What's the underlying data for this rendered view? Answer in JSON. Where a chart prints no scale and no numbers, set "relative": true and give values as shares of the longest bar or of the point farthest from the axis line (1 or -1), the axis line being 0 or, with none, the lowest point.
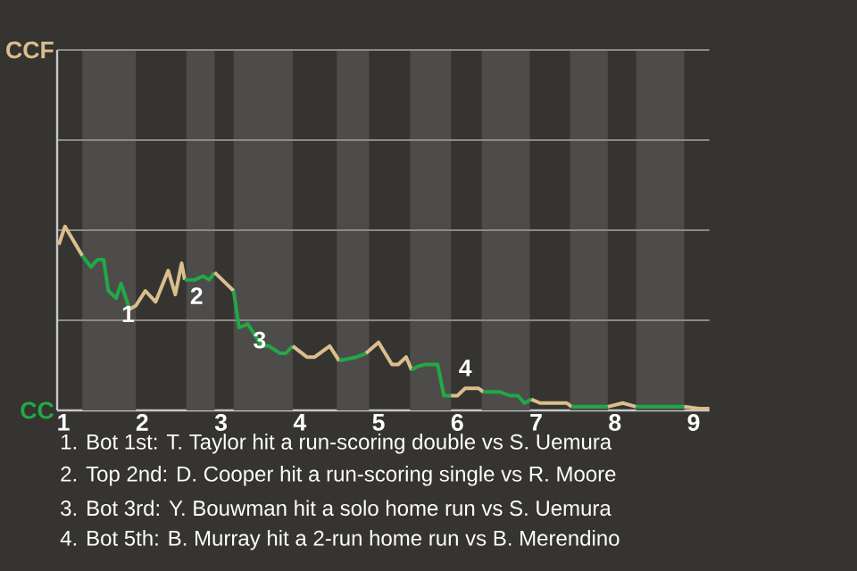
{
  "chart_data": {
    "type": "line",
    "relative": true,
    "series": [
      {
        "name": "CCF",
        "color": "#d9bf8c",
        "x": [
          0.94,
          1.02,
          1.24
        ],
        "values": [
          0.9,
          1,
          0.84
        ]
      },
      {
        "name": "CC",
        "color": "#22a846",
        "x": [
          1.24,
          1.35,
          1.43,
          1.51,
          1.57,
          1.67,
          1.73,
          1.84
        ],
        "values": [
          0.84,
          0.78,
          0.82,
          0.82,
          0.65,
          0.61,
          0.69,
          0.55
        ]
      },
      {
        "color": "#d9bf8d",
        "x": [
          1.84,
          1.92,
          2.04,
          2.17,
          2.33,
          2.42,
          2.5,
          2.54
        ],
        "values": [
          0.55,
          0.57,
          0.65,
          0.59,
          0.76,
          0.63,
          0.8,
          0.71
        ]
      },
      {
        "color": "#22a847",
        "x": [
          2.54,
          2.67,
          2.77,
          2.85,
          2.92
        ],
        "values": [
          0.71,
          0.71,
          0.73,
          0.71,
          0.75
        ]
      },
      {
        "color": "#d9bf8e",
        "x": [
          2.92,
          3.16
        ],
        "values": [
          0.75,
          0.65
        ]
      },
      {
        "color": "#22a845",
        "x": [
          3.16,
          3.23,
          3.34,
          3.52,
          3.61,
          3.75,
          3.82,
          3.91
        ],
        "values": [
          0.65,
          0.45,
          0.47,
          0.35,
          0.35,
          0.31,
          0.31,
          0.35
        ]
      },
      {
        "color": "#d9bf8b",
        "x": [
          3.91,
          4.09,
          4.19,
          4.38,
          4.5
        ],
        "values": [
          0.35,
          0.29,
          0.29,
          0.35,
          0.27
        ]
      },
      {
        "color": "#22a848",
        "x": [
          4.5,
          4.72,
          4.84
        ],
        "values": [
          0.27,
          0.29,
          0.31
        ]
      },
      {
        "color": "#d9bf8a",
        "x": [
          4.84,
          5,
          5.17,
          5.25,
          5.35,
          5.42
        ],
        "values": [
          0.31,
          0.37,
          0.25,
          0.25,
          0.29,
          0.22
        ]
      },
      {
        "color": "#22a944",
        "x": [
          5.42,
          5.5,
          5.6,
          5.69,
          5.75,
          5.83,
          5.92
        ],
        "values": [
          0.22,
          0.24,
          0.25,
          0.25,
          0.25,
          0.08,
          0.08
        ]
      },
      {
        "color": "#d9be8c",
        "x": [
          5.92,
          6,
          6.1,
          6.19,
          6.27,
          6.33
        ],
        "values": [
          0.08,
          0.08,
          0.12,
          0.12,
          0.12,
          0.1
        ]
      },
      {
        "color": "#22a746",
        "x": [
          6.33,
          6.44,
          6.54,
          6.67,
          6.77,
          6.85,
          6.94
        ],
        "values": [
          0.1,
          0.1,
          0.1,
          0.08,
          0.08,
          0.04,
          0.06
        ]
      },
      {
        "color": "#d9c08c",
        "x": [
          6.94,
          7.05,
          7.16,
          7.27,
          7.39,
          7.45
        ],
        "values": [
          0.06,
          0.04,
          0.04,
          0.04,
          0.04,
          0.02
        ]
      },
      {
        "color": "#23a846",
        "x": [
          7.45,
          7.91
        ],
        "values": [
          0.02,
          0.02
        ]
      },
      {
        "color": "#d8bf8c",
        "x": [
          7.91,
          8.1,
          8.27
        ],
        "values": [
          0.02,
          0.04,
          0.02
        ]
      },
      {
        "color": "#21a846",
        "x": [
          8.27,
          8.44,
          8.59,
          8.88
        ],
        "values": [
          0.02,
          0.02,
          0.02,
          0.02
        ]
      },
      {
        "color": "#dabf8c",
        "x": [
          8.88,
          9.07,
          9.2
        ],
        "values": [
          0.02,
          0.01,
          0.01
        ]
      }
    ],
    "xlim": [
      0.92,
      9.2
    ],
    "xticks": [
      1,
      2,
      3,
      4,
      5,
      6,
      7,
      8,
      9
    ],
    "marker": "none",
    "line_style": "solid",
    "ref_lines": [
      {
        "axis": "y",
        "value": 0.49,
        "color": "#8a8a88"
      },
      {
        "axis": "y",
        "value": 0.98,
        "color": "#8a8a88"
      },
      {
        "axis": "y",
        "value": 1.47,
        "color": "#8a8a88"
      },
      {
        "axis": "y",
        "value": 1.96,
        "color": "#8a8a88"
      }
    ],
    "bands": [
      {
        "axis": "x",
        "from": 1.24,
        "to": 1.92,
        "color": "#4d4c4a"
      },
      {
        "axis": "x",
        "from": 2.56,
        "to": 2.92,
        "color": "#4d4c4a"
      },
      {
        "axis": "x",
        "from": 3.16,
        "to": 3.91,
        "color": "#4d4c4a"
      },
      {
        "axis": "x",
        "from": 4.47,
        "to": 4.88,
        "color": "#4d4c4a"
      },
      {
        "axis": "x",
        "from": 5.4,
        "to": 5.92,
        "color": "#4d4c4a"
      },
      {
        "axis": "x",
        "from": 6.31,
        "to": 6.92,
        "color": "#4d4c4a"
      },
      {
        "axis": "x",
        "from": 7.43,
        "to": 7.91,
        "color": "#4d4c4a"
      },
      {
        "axis": "x",
        "from": 8.27,
        "to": 8.88,
        "color": "#4d4c4a"
      }
    ],
    "annotations": [
      {
        "text": "1",
        "x": 1.67,
        "y": 0.61
      },
      {
        "text": "2",
        "x": 2.54,
        "y": 0.71
      },
      {
        "text": "3",
        "x": 3.34,
        "y": 0.47
      },
      {
        "text": "4",
        "x": 5.92,
        "y": 0.08
      },
      "1. Bot 1st: T. Taylor hit a run-scoring double vs S. Uemura",
      "2. Top 2nd: D. Cooper hit a run-scoring single vs R. Moore",
      "3. Bot 3rd: Y. Bouwman hit a solo home run vs S. Uemura",
      "4. Bot 5th: B. Murray hit a 2-run home run vs B. Merendino"
    ]
  }
}
